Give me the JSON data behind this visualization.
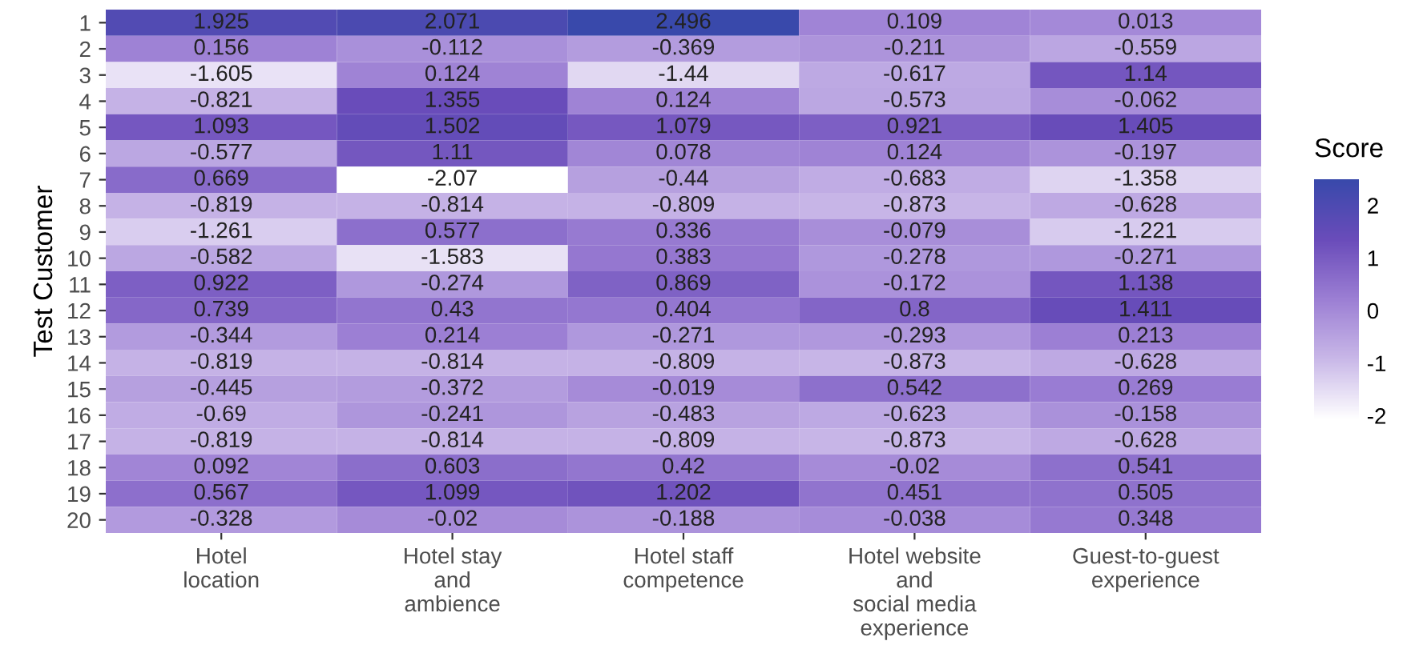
{
  "chart_data": {
    "type": "heatmap",
    "ylabel": "Test Customer",
    "clabel": "Score",
    "categories": [
      "Hotel\nlocation",
      "Hotel stay\nand\nambience",
      "Hotel staff\ncompetence",
      "Hotel website\nand\nsocial media\nexperience",
      "Guest-to-guest\nexperience"
    ],
    "y_categories": [
      "1",
      "2",
      "3",
      "4",
      "5",
      "6",
      "7",
      "8",
      "9",
      "10",
      "11",
      "12",
      "13",
      "14",
      "15",
      "16",
      "17",
      "18",
      "19",
      "20"
    ],
    "cells": [
      [
        1.925,
        2.071,
        2.496,
        0.109,
        0.013
      ],
      [
        0.156,
        -0.112,
        -0.369,
        -0.211,
        -0.559
      ],
      [
        -1.605,
        0.124,
        -1.44,
        -0.617,
        1.14
      ],
      [
        -0.821,
        1.355,
        0.124,
        -0.573,
        -0.062
      ],
      [
        1.093,
        1.502,
        1.079,
        0.921,
        1.405
      ],
      [
        -0.577,
        1.11,
        0.078,
        0.124,
        -0.197
      ],
      [
        0.669,
        -2.07,
        -0.44,
        -0.683,
        -1.358
      ],
      [
        -0.819,
        -0.814,
        -0.809,
        -0.873,
        -0.628
      ],
      [
        -1.261,
        0.577,
        0.336,
        -0.079,
        -1.221
      ],
      [
        -0.582,
        -1.583,
        0.383,
        -0.278,
        -0.271
      ],
      [
        0.922,
        -0.274,
        0.869,
        -0.172,
        1.138
      ],
      [
        0.739,
        0.43,
        0.404,
        0.8,
        1.411
      ],
      [
        -0.344,
        0.214,
        -0.271,
        -0.293,
        0.213
      ],
      [
        -0.819,
        -0.814,
        -0.809,
        -0.873,
        -0.628
      ],
      [
        -0.445,
        -0.372,
        -0.019,
        0.542,
        0.269
      ],
      [
        -0.69,
        -0.241,
        -0.483,
        -0.623,
        -0.158
      ],
      [
        -0.819,
        -0.814,
        -0.809,
        -0.873,
        -0.628
      ],
      [
        0.092,
        0.603,
        0.42,
        -0.02,
        0.541
      ],
      [
        0.567,
        1.099,
        1.202,
        0.451,
        0.505
      ],
      [
        -0.328,
        -0.02,
        -0.188,
        -0.038,
        0.348
      ]
    ],
    "data_labels": true,
    "clim": [
      -2.07,
      2.496
    ],
    "cticks": [
      -2,
      -1,
      0,
      1,
      2
    ]
  }
}
